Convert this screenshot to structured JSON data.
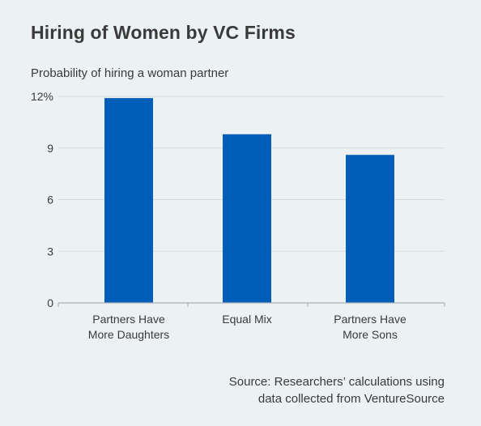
{
  "title": "Hiring of Women by VC Firms",
  "subtitle": "Probability of hiring a woman partner",
  "source": {
    "line1": "Source: Researchers’ calculations using",
    "line2": "data collected from VentureSource"
  },
  "colors": {
    "background": "#ecf1f3",
    "bar": "#005eb8",
    "grid": "#d3dbe0",
    "axis": "#a9b1b6"
  },
  "chart_data": {
    "type": "bar",
    "categories": [
      [
        "Partners Have",
        "More Daughters"
      ],
      [
        "Equal Mix"
      ],
      [
        "Partners Have",
        "More Sons"
      ]
    ],
    "values": [
      11.9,
      9.8,
      8.6
    ],
    "ylim": [
      0,
      12
    ],
    "yticks": [
      0,
      3,
      6,
      9,
      12
    ],
    "ytick_labels": [
      "0",
      "3",
      "6",
      "9",
      "12%"
    ],
    "grid": true,
    "legend": "none"
  }
}
